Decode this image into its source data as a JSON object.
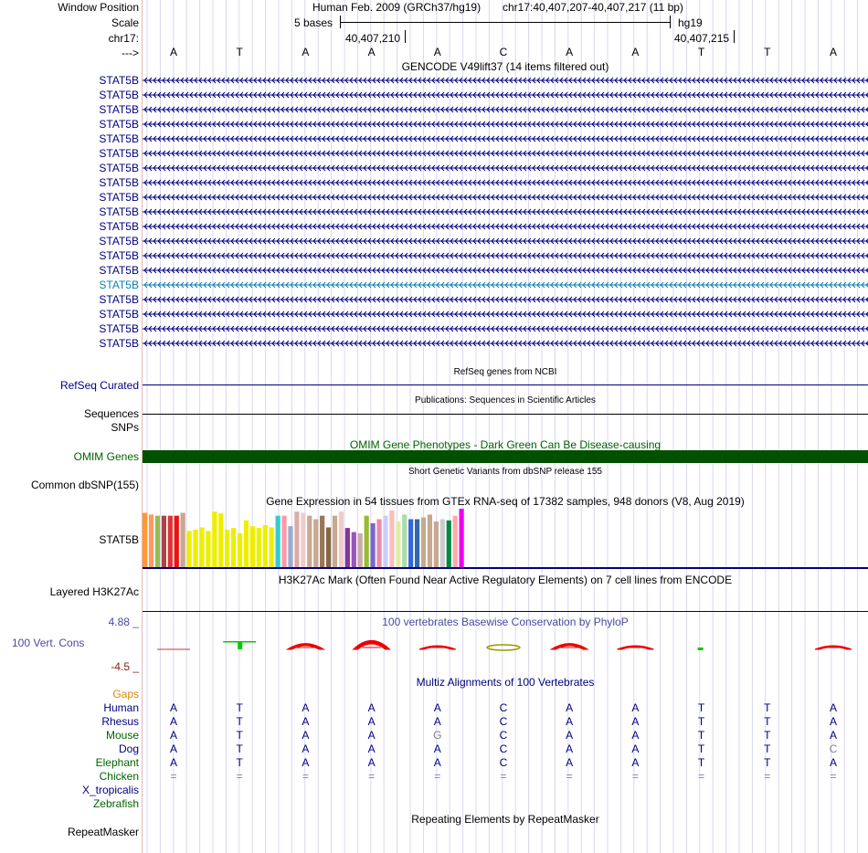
{
  "header": {
    "window_position_label": "Window Position",
    "scale_label": "Scale",
    "chrom_label": "chr17:",
    "strand_label": "--->",
    "assembly_text": "Human Feb. 2009 (GRCh37/hg19)",
    "position_text": "chr17:40,407,207-40,407,217 (11 bp)",
    "scale_text": "5 bases",
    "db_text": "hg19",
    "coord_1": "40,407,210",
    "coord_2": "40,407,215"
  },
  "sequence": [
    "A",
    "T",
    "A",
    "A",
    "A",
    "C",
    "A",
    "A",
    "T",
    "T",
    "A"
  ],
  "gencode": {
    "title": "GENCODE V49lift37 (14 items filtered out)",
    "rows": [
      {
        "label": "STAT5B",
        "color": "#000080"
      },
      {
        "label": "STAT5B",
        "color": "#000080"
      },
      {
        "label": "STAT5B",
        "color": "#000080"
      },
      {
        "label": "STAT5B",
        "color": "#000080"
      },
      {
        "label": "STAT5B",
        "color": "#000080"
      },
      {
        "label": "STAT5B",
        "color": "#000080"
      },
      {
        "label": "STAT5B",
        "color": "#000080"
      },
      {
        "label": "STAT5B",
        "color": "#000080"
      },
      {
        "label": "STAT5B",
        "color": "#000080"
      },
      {
        "label": "STAT5B",
        "color": "#000080"
      },
      {
        "label": "STAT5B",
        "color": "#000080"
      },
      {
        "label": "STAT5B",
        "color": "#000080"
      },
      {
        "label": "STAT5B",
        "color": "#000080"
      },
      {
        "label": "STAT5B",
        "color": "#000080"
      },
      {
        "label": "STAT5B",
        "color": "#0b7fb0"
      },
      {
        "label": "STAT5B",
        "color": "#000080"
      },
      {
        "label": "STAT5B",
        "color": "#000080"
      },
      {
        "label": "STAT5B",
        "color": "#000080"
      },
      {
        "label": "STAT5B",
        "color": "#000080"
      }
    ]
  },
  "refseq": {
    "title": "RefSeq genes from NCBI",
    "label": "RefSeq Curated"
  },
  "pubs": {
    "title": "Publications: Sequences in Scientific Articles",
    "label": "Sequences"
  },
  "snps": {
    "label": "SNPs"
  },
  "omim": {
    "title": "OMIM Gene Phenotypes - Dark Green Can Be Disease-causing",
    "label": "OMIM Genes",
    "color": "#005000"
  },
  "dbsnp": {
    "title": "Short Genetic Variants from dbSNP release 155",
    "label": "Common dbSNP(155)"
  },
  "gtex": {
    "title": "Gene Expression in 54 tissues from GTEx RNA-seq of 17382 samples, 948 donors (V8, Aug 2019)",
    "label": "STAT5B",
    "bars": [
      {
        "color": "#ff9933",
        "value": 0.93
      },
      {
        "color": "#ff9966",
        "value": 0.9
      },
      {
        "color": "#99bb55",
        "value": 0.88
      },
      {
        "color": "#aa4444",
        "value": 0.88
      },
      {
        "color": "#dd3333",
        "value": 0.88
      },
      {
        "color": "#ee1111",
        "value": 0.88
      },
      {
        "color": "#c8a890",
        "value": 0.93
      },
      {
        "color": "#eeee00",
        "value": 0.62
      },
      {
        "color": "#eeee00",
        "value": 0.64
      },
      {
        "color": "#eeee00",
        "value": 0.68
      },
      {
        "color": "#eeee00",
        "value": 0.62
      },
      {
        "color": "#eeee00",
        "value": 0.95
      },
      {
        "color": "#eeee00",
        "value": 0.92
      },
      {
        "color": "#eeee00",
        "value": 0.64
      },
      {
        "color": "#eeee00",
        "value": 0.67
      },
      {
        "color": "#eeee00",
        "value": 0.58
      },
      {
        "color": "#eeee00",
        "value": 0.8
      },
      {
        "color": "#eeee00",
        "value": 0.7
      },
      {
        "color": "#eeee00",
        "value": 0.67
      },
      {
        "color": "#eeee00",
        "value": 0.72
      },
      {
        "color": "#eeee00",
        "value": 0.68
      },
      {
        "color": "#33cccc",
        "value": 0.88
      },
      {
        "color": "#ff99aa",
        "value": 0.88
      },
      {
        "color": "#99aacc",
        "value": 0.7
      },
      {
        "color": "#ddaaaa",
        "value": 0.95
      },
      {
        "color": "#eecccc",
        "value": 0.93
      },
      {
        "color": "#c8a890",
        "value": 0.88
      },
      {
        "color": "#c8a890",
        "value": 0.82
      },
      {
        "color": "#997755",
        "value": 0.88
      },
      {
        "color": "#886644",
        "value": 0.68
      },
      {
        "color": "#c8a890",
        "value": 0.88
      },
      {
        "color": "#eecccc",
        "value": 0.95
      },
      {
        "color": "#883399",
        "value": 0.67
      },
      {
        "color": "#9955bb",
        "value": 0.6
      },
      {
        "color": "#ccaaaa",
        "value": 0.58
      },
      {
        "color": "#99bb33",
        "value": 0.88
      },
      {
        "color": "#7766cc",
        "value": 0.75
      },
      {
        "color": "#ee88aa",
        "value": 0.82
      },
      {
        "color": "#ccccff",
        "value": 0.88
      },
      {
        "color": "#ffbbbb",
        "value": 0.97
      },
      {
        "color": "#ddeeaa",
        "value": 0.78
      },
      {
        "color": "#aaddaa",
        "value": 0.9
      },
      {
        "color": "#3366dd",
        "value": 0.82
      },
      {
        "color": "#3366aa",
        "value": 0.82
      },
      {
        "color": "#c8a890",
        "value": 0.85
      },
      {
        "color": "#c8a890",
        "value": 0.9
      },
      {
        "color": "#c8a890",
        "value": 0.78
      },
      {
        "color": "#cccccc",
        "value": 0.82
      },
      {
        "color": "#008844",
        "value": 0.8
      },
      {
        "color": "#ffaaaa",
        "value": 0.88
      },
      {
        "color": "#ee00ee",
        "value": 1.0
      }
    ]
  },
  "h3k27ac": {
    "title": "H3K27Ac Mark (Often Found Near Active Regulatory Elements) on 7 cell lines from ENCODE",
    "label": "Layered H3K27Ac"
  },
  "phylop": {
    "title": "100 vertebrates Basewise Conservation by PhyloP",
    "label": "100 Vert. Cons",
    "max_label": "4.88 _",
    "min_label": "-4.5 _"
  },
  "multiz": {
    "title": "Multiz Alignments of 100 Vertebrates",
    "gaps_label": "Gaps",
    "species": [
      {
        "name": "Human",
        "color": "#000080",
        "bases": [
          "A",
          "T",
          "A",
          "A",
          "A",
          "C",
          "A",
          "A",
          "T",
          "T",
          "A"
        ]
      },
      {
        "name": "Rhesus",
        "color": "#000080",
        "bases": [
          "A",
          "T",
          "A",
          "A",
          "A",
          "C",
          "A",
          "A",
          "T",
          "T",
          "A"
        ]
      },
      {
        "name": "Mouse",
        "color": "#006400",
        "bases": [
          "A",
          "T",
          "A",
          "A",
          "G",
          "C",
          "A",
          "A",
          "T",
          "T",
          "A"
        ]
      },
      {
        "name": "Dog",
        "color": "#000080",
        "bases": [
          "A",
          "T",
          "A",
          "A",
          "A",
          "C",
          "A",
          "A",
          "T",
          "T",
          "C"
        ]
      },
      {
        "name": "Elephant",
        "color": "#006400",
        "bases": [
          "A",
          "T",
          "A",
          "A",
          "A",
          "C",
          "A",
          "A",
          "T",
          "T",
          "A"
        ]
      },
      {
        "name": "Chicken",
        "color": "#006400",
        "bases": [
          "=",
          "=",
          "=",
          "=",
          "=",
          "=",
          "=",
          "=",
          "=",
          "=",
          "="
        ]
      },
      {
        "name": "X_tropicalis",
        "color": "#000080",
        "bases": []
      },
      {
        "name": "Zebrafish",
        "color": "#006400",
        "bases": []
      }
    ]
  },
  "repeatmasker": {
    "title": "Repeating Elements by RepeatMasker",
    "label": "RepeatMasker"
  }
}
